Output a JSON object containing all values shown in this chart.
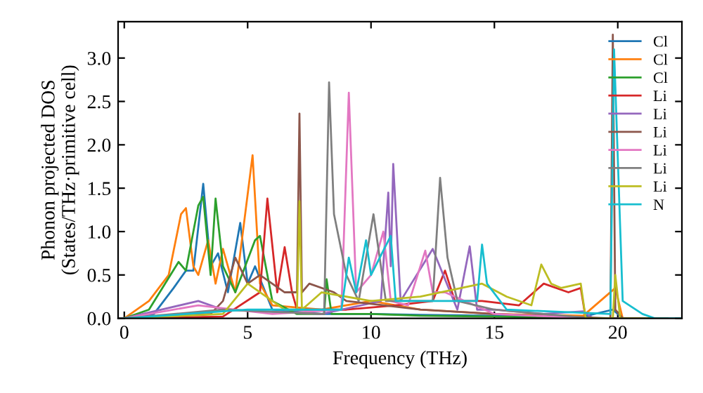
{
  "chart_data": {
    "type": "line",
    "xlabel": "Frequency (THz)",
    "ylabel": "Phonon projected DOS\n(States/THz·primitive cell)",
    "xlim": [
      -0.25,
      22.6
    ],
    "ylim": [
      0,
      3.42
    ],
    "xticks": [
      0,
      5,
      10,
      15,
      20
    ],
    "yticks": [
      {
        "value": 0,
        "label": "0.0"
      },
      0.5,
      {
        "value": 1,
        "label": "1.0"
      },
      1.5,
      {
        "value": 2,
        "label": "2.0"
      },
      2.5,
      {
        "value": 3,
        "label": "3.0"
      }
    ],
    "legend": "top right",
    "grid": false,
    "marker": "none",
    "line_style": "solid",
    "series": [
      {
        "name": "Cl",
        "color": "#1f77b4",
        "x": [
          0,
          1.2,
          2.0,
          2.5,
          2.8,
          3.2,
          3.5,
          3.8,
          4.2,
          4.7,
          5.0,
          5.3,
          6.0,
          8,
          10,
          12,
          15,
          18.6,
          19.8,
          20.2
        ],
        "values": [
          0,
          0.05,
          0.35,
          0.55,
          0.55,
          1.55,
          0.6,
          0.75,
          0.3,
          1.1,
          0.4,
          0.6,
          0.1,
          0.05,
          0.05,
          0.04,
          0.03,
          0.02,
          0.1,
          0
        ]
      },
      {
        "name": "Cl",
        "color": "#ff7f0e",
        "x": [
          0,
          1.0,
          1.8,
          2.3,
          2.5,
          2.8,
          3.0,
          3.4,
          3.7,
          4.0,
          4.5,
          5.2,
          5.5,
          6.0,
          8,
          10,
          12,
          15,
          18.6,
          19.9,
          20.2
        ],
        "values": [
          0,
          0.2,
          0.5,
          1.2,
          1.27,
          0.6,
          0.5,
          0.9,
          0.4,
          0.8,
          0.3,
          1.88,
          0.4,
          0.15,
          0.1,
          0.2,
          0.1,
          0.05,
          0.03,
          0.35,
          0
        ]
      },
      {
        "name": "Cl",
        "color": "#2ca02c",
        "x": [
          0,
          1.0,
          2.2,
          2.5,
          3.0,
          3.2,
          3.5,
          3.7,
          4.0,
          4.5,
          5.3,
          5.5,
          6.0,
          7,
          8.1,
          8.2,
          8.4,
          10,
          12,
          15,
          19
        ],
        "values": [
          0,
          0.1,
          0.65,
          0.55,
          1.3,
          1.4,
          0.5,
          1.38,
          0.6,
          0.3,
          0.9,
          0.95,
          0.2,
          0.05,
          0.05,
          0.45,
          0.05,
          0.05,
          0.03,
          0.02,
          0
        ]
      },
      {
        "name": "Li",
        "color": "#d62728",
        "x": [
          0,
          4.0,
          5.5,
          5.8,
          6.2,
          6.5,
          6.8,
          7.0,
          9,
          11,
          12.5,
          13.0,
          13.4,
          14.5,
          16,
          17,
          18,
          18.5,
          18.7,
          22
        ],
        "values": [
          0,
          0.02,
          0.3,
          1.38,
          0.3,
          0.82,
          0.3,
          0.1,
          0.1,
          0.15,
          0.2,
          0.55,
          0.2,
          0.2,
          0.15,
          0.4,
          0.3,
          0.35,
          0,
          0
        ]
      },
      {
        "name": "Li",
        "color": "#9467bd",
        "x": [
          0,
          3.0,
          4,
          8,
          10.4,
          10.7,
          10.8,
          10.9,
          11.2,
          12.5,
          13.5,
          14.0,
          14.3,
          15,
          17,
          18.6,
          19,
          22
        ],
        "values": [
          0,
          0.2,
          0.1,
          0.05,
          0.2,
          1.45,
          0.6,
          1.78,
          0.2,
          0.8,
          0.1,
          0.83,
          0.1,
          0.1,
          0.05,
          0.08,
          0,
          0
        ]
      },
      {
        "name": "Li",
        "color": "#8c564b",
        "x": [
          0,
          3.5,
          4.0,
          4.5,
          5.0,
          5.5,
          6.5,
          7.0,
          7.1,
          7.2,
          7.5,
          8.5,
          9,
          12,
          15,
          18,
          19.7,
          19.8,
          19.9,
          20.2,
          22
        ],
        "values": [
          0,
          0.05,
          0.2,
          0.7,
          0.4,
          0.5,
          0.3,
          0.3,
          2.36,
          0.3,
          0.4,
          0.3,
          0.2,
          0.1,
          0.05,
          0.02,
          0,
          3.27,
          0.1,
          0,
          0
        ]
      },
      {
        "name": "Li",
        "color": "#e377c2",
        "x": [
          0,
          3,
          6,
          8.8,
          9.1,
          9.4,
          10.0,
          10.5,
          10.8,
          11.5,
          12.2,
          12.5,
          13.0,
          15,
          19,
          22
        ],
        "values": [
          0,
          0.15,
          0.05,
          0.1,
          2.6,
          0.3,
          0.5,
          1.0,
          0.2,
          0.15,
          0.78,
          0.3,
          0.3,
          0.05,
          0,
          0
        ]
      },
      {
        "name": "Li",
        "color": "#7f7f7f",
        "x": [
          0,
          4,
          8.1,
          8.3,
          8.5,
          9.0,
          9.5,
          10.1,
          10.3,
          10.6,
          12.5,
          12.8,
          13.1,
          13.5,
          15,
          19,
          22
        ],
        "values": [
          0,
          0.1,
          0.05,
          2.72,
          1.2,
          0.5,
          0.2,
          1.2,
          0.8,
          0.2,
          0.2,
          1.62,
          0.7,
          0.2,
          0.1,
          0,
          0
        ]
      },
      {
        "name": "Li",
        "color": "#bcbd22",
        "x": [
          0,
          4,
          5.0,
          6.5,
          7.0,
          7.1,
          7.2,
          8.0,
          10,
          12,
          14.5,
          15.5,
          16.5,
          16.9,
          17.3,
          17.7,
          18.5,
          18.7,
          19.8,
          19.9,
          20.1,
          22
        ],
        "values": [
          0,
          0.05,
          0.4,
          0.1,
          0.1,
          1.35,
          0.1,
          0.3,
          0.2,
          0.25,
          0.4,
          0.25,
          0.15,
          0.62,
          0.4,
          0.35,
          0.4,
          0,
          0,
          0.5,
          0,
          0
        ]
      },
      {
        "name": "N",
        "color": "#17becf",
        "x": [
          0,
          5,
          8.8,
          9.1,
          9.4,
          9.8,
          10.0,
          10.8,
          11.0,
          14.3,
          14.5,
          14.7,
          15.5,
          19.7,
          19.85,
          20.2,
          21,
          21.5,
          22.6
        ],
        "values": [
          0,
          0.1,
          0.1,
          0.7,
          0.3,
          0.9,
          0.5,
          0.95,
          0.2,
          0.2,
          0.85,
          0.4,
          0.1,
          0.05,
          3.1,
          0.2,
          0.05,
          0,
          0
        ]
      }
    ]
  }
}
